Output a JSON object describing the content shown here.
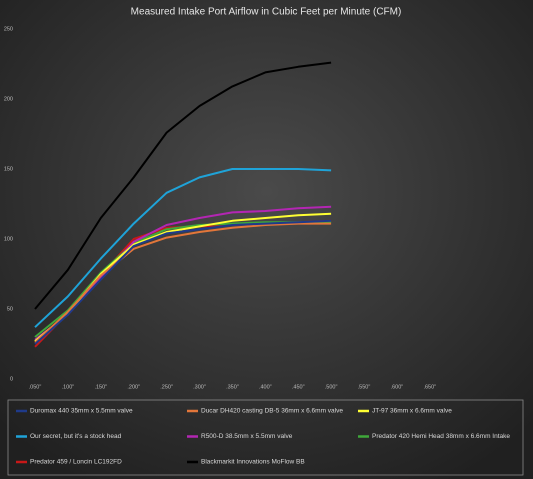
{
  "chart_data": {
    "type": "line",
    "title": "Measured Intake Port Airflow in Cubic Feet per Minute (CFM)",
    "categories": [
      ".050\"",
      ".100\"",
      ".150\"",
      ".200\"",
      ".250\"",
      ".300\"",
      ".350\"",
      ".400\"",
      ".450\"",
      ".500\"",
      ".550\"",
      ".600\"",
      ".650\""
    ],
    "ylim": [
      0,
      250
    ],
    "yticks": [
      0,
      50,
      100,
      150,
      200,
      250
    ],
    "series": [
      {
        "name": "Duromax 440 35mm x 5.5mm valve",
        "color": "#1f3a8a",
        "values": [
          25,
          46,
          71,
          95,
          104,
          107,
          110,
          111,
          112,
          113,
          null,
          null,
          null
        ]
      },
      {
        "name": "Ducar DH420 casting DB-5 36mm x 6.6mm valve",
        "color": "#e2763a",
        "values": [
          26,
          48,
          74,
          93,
          101,
          105,
          108,
          110,
          111,
          111,
          null,
          null,
          null
        ]
      },
      {
        "name": "JT-97 36mm x 6.6mm valve",
        "color": "#ffff33",
        "values": [
          27,
          47,
          75,
          96,
          105,
          109,
          113,
          115,
          117,
          118,
          null,
          null,
          null
        ]
      },
      {
        "name": "Our secret, but it's a stock head",
        "color": "#1fa3d8",
        "values": [
          37,
          59,
          86,
          111,
          133,
          144,
          150,
          150,
          150,
          149,
          null,
          null,
          null
        ]
      },
      {
        "name": "R500-D 38.5mm x 5.5mm valve",
        "color": "#b326b3",
        "values": [
          28,
          46,
          72,
          98,
          110,
          115,
          119,
          120,
          122,
          123,
          null,
          null,
          null
        ]
      },
      {
        "name": "Predator 420 Hemi Head 38mm x 6.6mm Intake",
        "color": "#3fa83a",
        "values": [
          30,
          49,
          76,
          97,
          107,
          110,
          111,
          112,
          112,
          112,
          null,
          null,
          null
        ]
      },
      {
        "name": "Predator 459 / Loncin LC192FD",
        "color": "#c81818",
        "values": [
          23,
          47,
          74,
          100,
          108,
          109,
          110,
          111,
          112,
          113,
          null,
          null,
          null
        ]
      },
      {
        "name": "Blackmarkit Innovations MoFlow BB",
        "color": "#000000",
        "values": [
          50,
          78,
          115,
          144,
          176,
          195,
          209,
          219,
          223,
          226,
          null,
          null,
          null
        ]
      }
    ]
  }
}
